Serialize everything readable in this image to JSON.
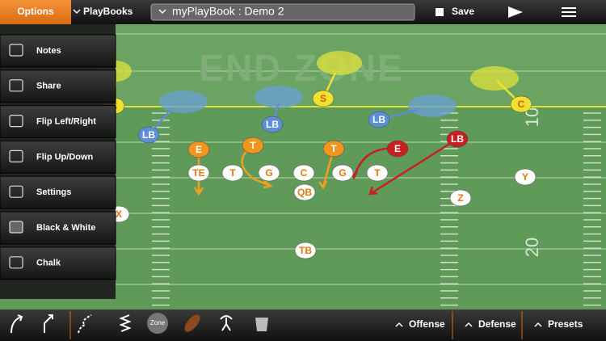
{
  "top_bar": {
    "options": "Options",
    "playbooks": "PlayBooks",
    "playbook_title": "myPlayBook : Demo 2",
    "save": "Save"
  },
  "menu": [
    "Notes",
    "Share",
    "Flip Left/Right",
    "Flip Up/Down",
    "Settings",
    "Black & White",
    "Chalk"
  ],
  "field": {
    "end_zone": "END ZONE",
    "yard_numbers": [
      "10",
      "20"
    ],
    "players": [
      "S",
      "C",
      "C",
      "LB",
      "LB",
      "LB",
      "E",
      "T",
      "T",
      "E",
      "LB",
      "TE",
      "T",
      "G",
      "C",
      "G",
      "T",
      "QB",
      "Y",
      "Z",
      "X",
      "TB"
    ]
  },
  "toolbar": {
    "zone": "Zone",
    "tabs": [
      "Offense",
      "Defense",
      "Presets"
    ]
  }
}
